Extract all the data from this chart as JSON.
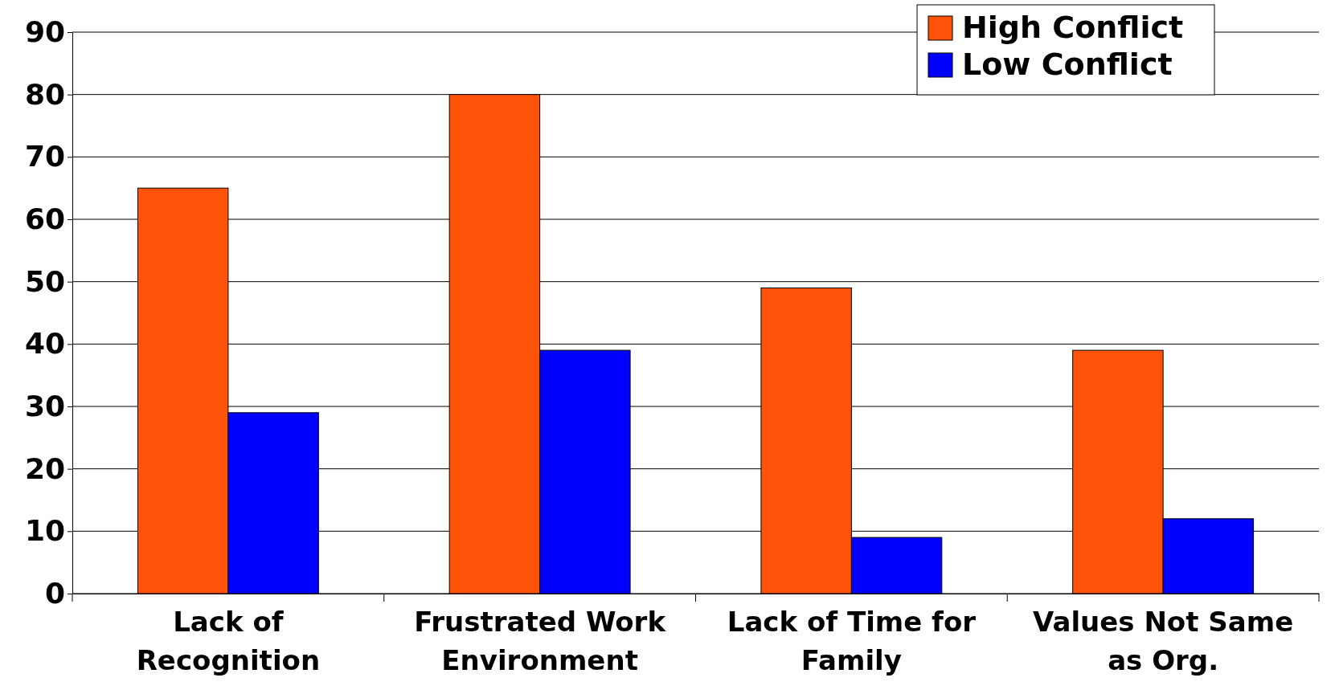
{
  "chart_data": {
    "type": "bar",
    "categories": [
      "Lack of Recognition",
      "Frustrated Work Environment",
      "Lack of Time for Family",
      "Values Not Same as Org."
    ],
    "series": [
      {
        "name": "High Conflict",
        "color": "#ff5309",
        "values": [
          65,
          80,
          49,
          39
        ]
      },
      {
        "name": "Low Conflict",
        "color": "#0000ff",
        "values": [
          29,
          39,
          9,
          12
        ]
      }
    ],
    "ylim": [
      0,
      90
    ],
    "yticks": [
      0,
      10,
      20,
      30,
      40,
      50,
      60,
      70,
      80,
      90
    ],
    "grid": "y",
    "legend": "top right"
  }
}
